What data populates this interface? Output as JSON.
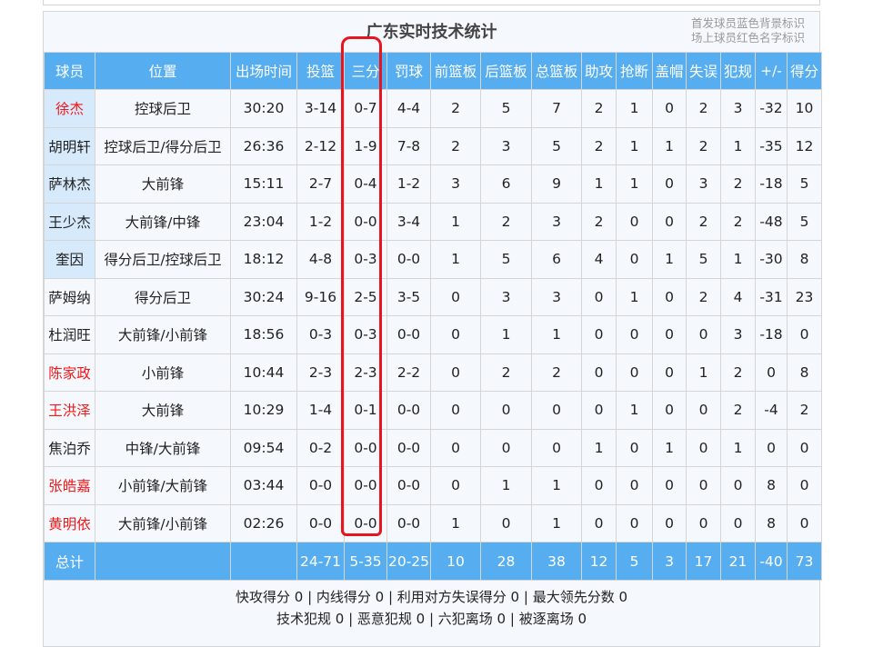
{
  "title": "广东实时技术统计",
  "notes": [
    "首发球员蓝色背景标识",
    "场上球员红色名字标识"
  ],
  "columns": [
    "球员",
    "位置",
    "出场时间",
    "投篮",
    "三分",
    "罚球",
    "前篮板",
    "后篮板",
    "总篮板",
    "助攻",
    "抢断",
    "盖帽",
    "失误",
    "犯规",
    "+/-",
    "得分"
  ],
  "players": [
    {
      "name": "徐杰",
      "starter": true,
      "on_court": true,
      "stats": [
        "控球后卫",
        "30:20",
        "3-14",
        "0-7",
        "4-4",
        "2",
        "5",
        "7",
        "2",
        "1",
        "0",
        "2",
        "3",
        "-32",
        "10"
      ]
    },
    {
      "name": "胡明轩",
      "starter": true,
      "on_court": false,
      "stats": [
        "控球后卫/得分后卫",
        "26:36",
        "2-12",
        "1-9",
        "7-8",
        "2",
        "3",
        "5",
        "2",
        "1",
        "1",
        "2",
        "1",
        "-35",
        "12"
      ]
    },
    {
      "name": "萨林杰",
      "starter": true,
      "on_court": false,
      "stats": [
        "大前锋",
        "15:11",
        "2-7",
        "0-4",
        "1-2",
        "3",
        "6",
        "9",
        "1",
        "1",
        "0",
        "3",
        "2",
        "-18",
        "5"
      ]
    },
    {
      "name": "王少杰",
      "starter": true,
      "on_court": false,
      "stats": [
        "大前锋/中锋",
        "23:04",
        "1-2",
        "0-0",
        "3-4",
        "1",
        "2",
        "3",
        "2",
        "0",
        "0",
        "2",
        "2",
        "-48",
        "5"
      ]
    },
    {
      "name": "奎因",
      "starter": true,
      "on_court": false,
      "stats": [
        "得分后卫/控球后卫",
        "18:12",
        "4-8",
        "0-3",
        "0-0",
        "1",
        "5",
        "6",
        "4",
        "0",
        "1",
        "5",
        "1",
        "-30",
        "8"
      ]
    },
    {
      "name": "萨姆纳",
      "starter": false,
      "on_court": false,
      "stats": [
        "得分后卫",
        "30:24",
        "9-16",
        "2-5",
        "3-5",
        "0",
        "3",
        "3",
        "0",
        "1",
        "0",
        "2",
        "4",
        "-31",
        "23"
      ]
    },
    {
      "name": "杜润旺",
      "starter": false,
      "on_court": false,
      "stats": [
        "大前锋/小前锋",
        "18:56",
        "0-3",
        "0-3",
        "0-0",
        "0",
        "1",
        "1",
        "0",
        "0",
        "0",
        "0",
        "3",
        "-18",
        "0"
      ]
    },
    {
      "name": "陈家政",
      "starter": false,
      "on_court": true,
      "stats": [
        "小前锋",
        "10:44",
        "2-3",
        "2-3",
        "2-2",
        "0",
        "2",
        "2",
        "0",
        "0",
        "0",
        "1",
        "2",
        "0",
        "8"
      ]
    },
    {
      "name": "王洪泽",
      "starter": false,
      "on_court": true,
      "stats": [
        "大前锋",
        "10:29",
        "1-4",
        "0-1",
        "0-0",
        "0",
        "0",
        "0",
        "0",
        "1",
        "0",
        "0",
        "2",
        "-4",
        "2"
      ]
    },
    {
      "name": "焦泊乔",
      "starter": false,
      "on_court": false,
      "stats": [
        "中锋/大前锋",
        "09:54",
        "0-2",
        "0-0",
        "0-0",
        "0",
        "0",
        "0",
        "1",
        "0",
        "1",
        "0",
        "1",
        "0",
        "0"
      ]
    },
    {
      "name": "张皓嘉",
      "starter": false,
      "on_court": true,
      "stats": [
        "小前锋/大前锋",
        "03:44",
        "0-0",
        "0-0",
        "0-0",
        "0",
        "1",
        "1",
        "0",
        "0",
        "0",
        "0",
        "0",
        "8",
        "0"
      ]
    },
    {
      "name": "黄明依",
      "starter": false,
      "on_court": true,
      "stats": [
        "大前锋/小前锋",
        "02:26",
        "0-0",
        "0-0",
        "0-0",
        "1",
        "0",
        "1",
        "0",
        "0",
        "0",
        "0",
        "0",
        "8",
        "0"
      ]
    }
  ],
  "total": {
    "label": "总计",
    "stats": [
      "",
      "",
      "24-71",
      "5-35",
      "20-25",
      "10",
      "28",
      "38",
      "12",
      "5",
      "3",
      "17",
      "21",
      "-40",
      "73"
    ]
  },
  "footer": {
    "line1": "快攻得分 0 | 内线得分 0 | 利用对方失误得分 0 | 最大领先分数 0",
    "line2": "技术犯规 0 | 恶意犯规 0 | 六犯离场 0 | 被逐离场 0"
  },
  "colors": {
    "header_bg": "#56aef0",
    "starter_bg": "#d6eafc",
    "on_court_name": "#f21818",
    "annotation": "#e8141e"
  }
}
